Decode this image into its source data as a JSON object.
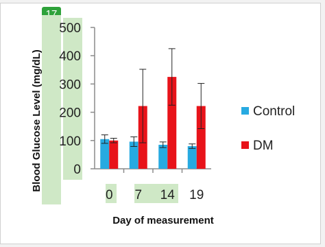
{
  "badge": {
    "label": "17"
  },
  "chart_data": {
    "type": "bar",
    "title": "",
    "xlabel": "Day of measurement",
    "ylabel": "Blood Glucose Level (mg/dL)",
    "ylim": [
      0,
      500
    ],
    "yticks": [
      0,
      100,
      200,
      300,
      400,
      500
    ],
    "categories": [
      "0",
      "7",
      "14",
      "19"
    ],
    "highlighted_ticks_color": "#cfe8c6",
    "grid": false,
    "legend_position": "right",
    "series": [
      {
        "name": "Control",
        "color": "#27aae1",
        "values": [
          105,
          96,
          85,
          80
        ],
        "errors": [
          15,
          17,
          10,
          8
        ]
      },
      {
        "name": "DM",
        "color": "#e8131a",
        "values": [
          100,
          222,
          325,
          222
        ],
        "errors": [
          8,
          130,
          100,
          80
        ]
      }
    ]
  }
}
